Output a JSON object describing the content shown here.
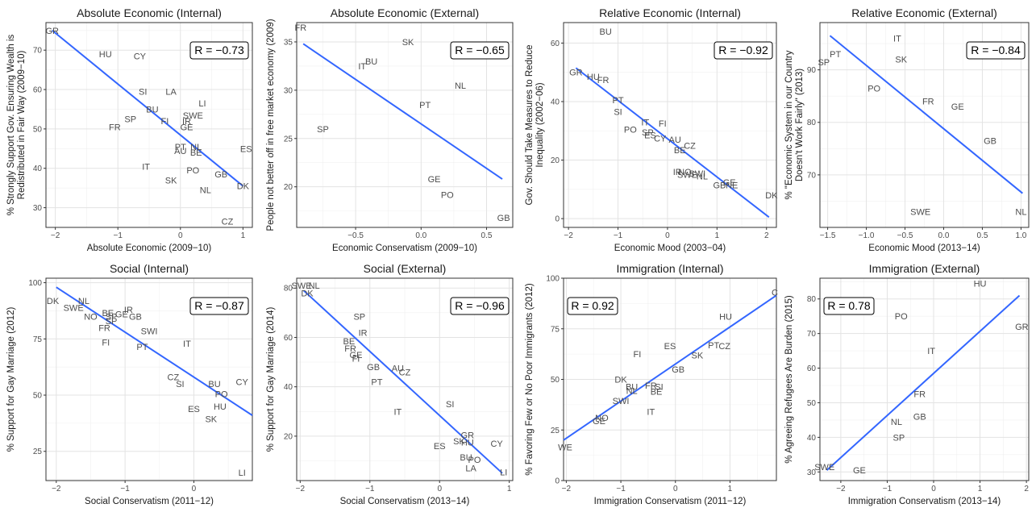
{
  "chart_data": [
    {
      "type": "scatter",
      "title": "Absolute Economic (Internal)",
      "xlabel": "Absolute Economic (2009−10)",
      "ylabel": [
        "% Strongly Support Gov. Ensuring Wealth is",
        "Redistributed in Fair Way (2009−10)"
      ],
      "annotation": "R = −0.73",
      "annotation_position": "top-right",
      "xlim": [
        -2.15,
        1.15
      ],
      "ylim": [
        25,
        77
      ],
      "xticks": [
        -2,
        -1,
        0,
        1
      ],
      "xtick_labels": [
        "−2",
        "−1",
        "0",
        "1"
      ],
      "yticks": [
        30,
        40,
        50,
        60,
        70
      ],
      "ytick_labels": [
        "30",
        "40",
        "50",
        "60",
        "70"
      ],
      "fit_line": {
        "x": [
          -2.05,
          1.0
        ],
        "y": [
          75,
          35.5
        ]
      },
      "points": [
        {
          "label": "GR",
          "x": -2.05,
          "y": 75
        },
        {
          "label": "HU",
          "x": -1.2,
          "y": 69
        },
        {
          "label": "CY",
          "x": -0.65,
          "y": 68.5
        },
        {
          "label": "SI",
          "x": -0.6,
          "y": 59.5
        },
        {
          "label": "LA",
          "x": -0.15,
          "y": 59.5
        },
        {
          "label": "LI",
          "x": 0.35,
          "y": 56.5
        },
        {
          "label": "BU",
          "x": -0.45,
          "y": 55
        },
        {
          "label": "SWE",
          "x": 0.2,
          "y": 53.5
        },
        {
          "label": "SP",
          "x": -0.8,
          "y": 52.5
        },
        {
          "label": "FI",
          "x": -0.25,
          "y": 52
        },
        {
          "label": "IR",
          "x": 0.1,
          "y": 52
        },
        {
          "label": "FR",
          "x": -1.05,
          "y": 50.5
        },
        {
          "label": "GE",
          "x": 0.1,
          "y": 50.5
        },
        {
          "label": "PT",
          "x": 0.0,
          "y": 45.5
        },
        {
          "label": "NL",
          "x": 0.25,
          "y": 45.5
        },
        {
          "label": "ES",
          "x": 1.05,
          "y": 45
        },
        {
          "label": "AU",
          "x": 0.0,
          "y": 44.5
        },
        {
          "label": "BE",
          "x": 0.25,
          "y": 44
        },
        {
          "label": "IT",
          "x": -0.55,
          "y": 40.5
        },
        {
          "label": "PO",
          "x": 0.2,
          "y": 39.5
        },
        {
          "label": "GB",
          "x": 0.65,
          "y": 38.5
        },
        {
          "label": "SK",
          "x": -0.15,
          "y": 37
        },
        {
          "label": "DK",
          "x": 1.0,
          "y": 35.5
        },
        {
          "label": "NL",
          "x": 0.4,
          "y": 34.5
        },
        {
          "label": "CZ",
          "x": 0.75,
          "y": 26.5
        }
      ]
    },
    {
      "type": "scatter",
      "title": "Absolute Economic (External)",
      "xlabel": "Economic Conservatism (2009−10)",
      "ylabel": [
        "People not better off in free market economy (2009)"
      ],
      "annotation": "R = −0.65",
      "annotation_position": "top-right",
      "xlim": [
        -0.95,
        0.7
      ],
      "ylim": [
        15.8,
        37
      ],
      "xticks": [
        -0.5,
        0.0,
        0.5
      ],
      "xtick_labels": [
        "−0.5",
        "0.0",
        "0.5"
      ],
      "yticks": [
        20,
        25,
        30,
        35
      ],
      "ytick_labels": [
        "20",
        "25",
        "30",
        "35"
      ],
      "fit_line": {
        "x": [
          -0.9,
          0.62
        ],
        "y": [
          34.8,
          20.8
        ]
      },
      "points": [
        {
          "label": "FR",
          "x": -0.92,
          "y": 36.5
        },
        {
          "label": "SK",
          "x": -0.1,
          "y": 35
        },
        {
          "label": "BU",
          "x": -0.38,
          "y": 33
        },
        {
          "label": "IT",
          "x": -0.45,
          "y": 32.5
        },
        {
          "label": "NL",
          "x": 0.3,
          "y": 30.5
        },
        {
          "label": "PT",
          "x": 0.03,
          "y": 28.5
        },
        {
          "label": "SP",
          "x": -0.75,
          "y": 26
        },
        {
          "label": "GE",
          "x": 0.1,
          "y": 20.8
        },
        {
          "label": "PO",
          "x": 0.2,
          "y": 19.2
        },
        {
          "label": "GB",
          "x": 0.63,
          "y": 16.8
        }
      ]
    },
    {
      "type": "scatter",
      "title": "Relative Economic (Internal)",
      "xlabel": "Economic Mood (2003−04)",
      "ylabel": [
        "Gov. Should Take Measures to Reduce",
        "Inequality (2002−06)"
      ],
      "annotation": "R = −0.92",
      "annotation_position": "top-right",
      "xlim": [
        -2.1,
        2.2
      ],
      "ylim": [
        -3,
        67
      ],
      "xticks": [
        -2,
        -1,
        0,
        1,
        2
      ],
      "xtick_labels": [
        "−2",
        "−1",
        "0",
        "1",
        "2"
      ],
      "yticks": [
        0,
        20,
        40,
        60
      ],
      "ytick_labels": [
        "0",
        "20",
        "40",
        "60"
      ],
      "fit_line": {
        "x": [
          -1.85,
          2.05
        ],
        "y": [
          51.5,
          0.5
        ]
      },
      "points": [
        {
          "label": "BU",
          "x": -1.25,
          "y": 64
        },
        {
          "label": "GR",
          "x": -1.85,
          "y": 50
        },
        {
          "label": "HU",
          "x": -1.5,
          "y": 48.5
        },
        {
          "label": "FR",
          "x": -1.3,
          "y": 47.5
        },
        {
          "label": "PT",
          "x": -1.0,
          "y": 40.5
        },
        {
          "label": "SI",
          "x": -1.0,
          "y": 36.5
        },
        {
          "label": "IT",
          "x": -0.45,
          "y": 33
        },
        {
          "label": "FI",
          "x": -0.1,
          "y": 32.5
        },
        {
          "label": "PO",
          "x": -0.75,
          "y": 30.5
        },
        {
          "label": "SP",
          "x": -0.4,
          "y": 29.5
        },
        {
          "label": "ES",
          "x": -0.35,
          "y": 28.5
        },
        {
          "label": "CY",
          "x": -0.15,
          "y": 27.5
        },
        {
          "label": "AU",
          "x": 0.15,
          "y": 27
        },
        {
          "label": "CZ",
          "x": 0.45,
          "y": 25
        },
        {
          "label": "BE",
          "x": 0.25,
          "y": 23.5
        },
        {
          "label": "IR",
          "x": 0.2,
          "y": 16
        },
        {
          "label": "NO",
          "x": 0.35,
          "y": 16
        },
        {
          "label": "SWI",
          "x": 0.6,
          "y": 15.5
        },
        {
          "label": "SWE",
          "x": 0.4,
          "y": 15
        },
        {
          "label": "NL",
          "x": 0.7,
          "y": 14.5
        },
        {
          "label": "GE",
          "x": 1.25,
          "y": 12.5
        },
        {
          "label": "GB",
          "x": 1.05,
          "y": 11.5
        },
        {
          "label": "NE",
          "x": 1.3,
          "y": 11.5
        },
        {
          "label": "DK",
          "x": 2.1,
          "y": 8
        }
      ]
    },
    {
      "type": "scatter",
      "title": "Relative Economic (External)",
      "xlabel": "Economic Mood (2013−14)",
      "ylabel": [
        "% \"Economic System in our Country",
        "Doesn't Work Fairly\" (2013)"
      ],
      "annotation": "R = −0.84",
      "annotation_position": "top-right",
      "xlim": [
        -1.6,
        1.1
      ],
      "ylim": [
        60,
        99
      ],
      "xticks": [
        -1.5,
        -1.0,
        -0.5,
        0.0,
        0.5,
        1.0
      ],
      "xtick_labels": [
        "−1.5",
        "−1.0",
        "−0.5",
        "0.0",
        "0.5",
        "1.0"
      ],
      "yticks": [
        70,
        80,
        90
      ],
      "ytick_labels": [
        "70",
        "80",
        "90"
      ],
      "fit_line": {
        "x": [
          -1.47,
          1.02
        ],
        "y": [
          96.5,
          66.5
        ]
      },
      "points": [
        {
          "label": "IT",
          "x": -0.6,
          "y": 96
        },
        {
          "label": "PT",
          "x": -1.4,
          "y": 93
        },
        {
          "label": "SK",
          "x": -0.55,
          "y": 92
        },
        {
          "label": "SP",
          "x": -1.55,
          "y": 91.5
        },
        {
          "label": "PO",
          "x": -0.9,
          "y": 86.5
        },
        {
          "label": "FR",
          "x": -0.2,
          "y": 84
        },
        {
          "label": "GE",
          "x": 0.18,
          "y": 83
        },
        {
          "label": "GB",
          "x": 0.6,
          "y": 76.5
        },
        {
          "label": "SWE",
          "x": -0.3,
          "y": 63
        },
        {
          "label": "NL",
          "x": 1.0,
          "y": 63
        }
      ]
    },
    {
      "type": "scatter",
      "title": "Social (Internal)",
      "xlabel": "Social Conservatism (2011−12)",
      "ylabel": [
        "% Support for Gay Marriage (2012)"
      ],
      "annotation": "R = −0.87",
      "annotation_position": "top-right",
      "xlim": [
        -2.15,
        0.85
      ],
      "ylim": [
        12,
        102
      ],
      "xticks": [
        -2,
        -1,
        0
      ],
      "xtick_labels": [
        "−2",
        "−1",
        "0"
      ],
      "yticks": [
        25,
        50,
        75,
        100
      ],
      "ytick_labels": [
        "25",
        "50",
        "75",
        "100"
      ],
      "fit_line": {
        "x": [
          -2.0,
          0.85
        ],
        "y": [
          98,
          41
        ]
      },
      "points": [
        {
          "label": "DK",
          "x": -2.05,
          "y": 92
        },
        {
          "label": "NL",
          "x": -1.6,
          "y": 92
        },
        {
          "label": "SWE",
          "x": -1.75,
          "y": 89
        },
        {
          "label": "IR",
          "x": -0.95,
          "y": 88
        },
        {
          "label": "BE",
          "x": -1.25,
          "y": 86.5
        },
        {
          "label": "SP",
          "x": -1.2,
          "y": 85
        },
        {
          "label": "GE",
          "x": -1.05,
          "y": 86
        },
        {
          "label": "GB",
          "x": -0.85,
          "y": 85
        },
        {
          "label": "NO",
          "x": -1.5,
          "y": 85
        },
        {
          "label": "SP",
          "x": -1.2,
          "y": 83
        },
        {
          "label": "FR",
          "x": -1.3,
          "y": 80
        },
        {
          "label": "SWI",
          "x": -0.65,
          "y": 78.5
        },
        {
          "label": "FI",
          "x": -1.28,
          "y": 73.5
        },
        {
          "label": "PT",
          "x": -0.75,
          "y": 71.5
        },
        {
          "label": "IT",
          "x": -0.1,
          "y": 73
        },
        {
          "label": "CZ",
          "x": -0.3,
          "y": 58
        },
        {
          "label": "CY",
          "x": 0.7,
          "y": 56
        },
        {
          "label": "SI",
          "x": -0.2,
          "y": 55
        },
        {
          "label": "BU",
          "x": 0.3,
          "y": 55
        },
        {
          "label": "PO",
          "x": 0.4,
          "y": 50.5
        },
        {
          "label": "ES",
          "x": 0.0,
          "y": 44
        },
        {
          "label": "HU",
          "x": 0.38,
          "y": 45
        },
        {
          "label": "SK",
          "x": 0.25,
          "y": 39.5
        },
        {
          "label": "LI",
          "x": 0.7,
          "y": 15.5
        }
      ]
    },
    {
      "type": "scatter",
      "title": "Social (External)",
      "xlabel": "Social Conservatism (2013−14)",
      "ylabel": [
        "% Support for Gay Marriage (2014)"
      ],
      "annotation": "R = −0.96",
      "annotation_position": "top-right",
      "xlim": [
        -2.05,
        1.05
      ],
      "ylim": [
        2,
        84
      ],
      "xticks": [
        -2,
        -1,
        0,
        1
      ],
      "xtick_labels": [
        "−2",
        "−1",
        "0",
        "1"
      ],
      "yticks": [
        20,
        40,
        60,
        80
      ],
      "ytick_labels": [
        "20",
        "40",
        "60",
        "80"
      ],
      "fit_line": {
        "x": [
          -1.95,
          0.9
        ],
        "y": [
          79,
          5
        ]
      },
      "points": [
        {
          "label": "SWE",
          "x": -1.98,
          "y": 81
        },
        {
          "label": "NL",
          "x": -1.8,
          "y": 81
        },
        {
          "label": "DK",
          "x": -1.9,
          "y": 78
        },
        {
          "label": "SP",
          "x": -1.15,
          "y": 68.5
        },
        {
          "label": "IR",
          "x": -1.1,
          "y": 62
        },
        {
          "label": "BE",
          "x": -1.3,
          "y": 58.5
        },
        {
          "label": "FR",
          "x": -1.28,
          "y": 55.5
        },
        {
          "label": "GE",
          "x": -1.2,
          "y": 53
        },
        {
          "label": "FI",
          "x": -1.2,
          "y": 51.5
        },
        {
          "label": "GB",
          "x": -0.95,
          "y": 48
        },
        {
          "label": "AU",
          "x": -0.6,
          "y": 47.5
        },
        {
          "label": "CZ",
          "x": -0.5,
          "y": 46
        },
        {
          "label": "PT",
          "x": -0.9,
          "y": 42
        },
        {
          "label": "SI",
          "x": 0.15,
          "y": 33
        },
        {
          "label": "IT",
          "x": -0.6,
          "y": 30
        },
        {
          "label": "GR",
          "x": 0.4,
          "y": 20.5
        },
        {
          "label": "SK",
          "x": 0.28,
          "y": 18
        },
        {
          "label": "HU",
          "x": 0.4,
          "y": 17.5
        },
        {
          "label": "ES",
          "x": 0.0,
          "y": 16
        },
        {
          "label": "CY",
          "x": 0.82,
          "y": 17
        },
        {
          "label": "BU",
          "x": 0.38,
          "y": 11.5
        },
        {
          "label": "PO",
          "x": 0.5,
          "y": 10.5
        },
        {
          "label": "LA",
          "x": 0.45,
          "y": 7
        },
        {
          "label": "LI",
          "x": 0.92,
          "y": 5.5
        }
      ]
    },
    {
      "type": "scatter",
      "title": "Immigration (Internal)",
      "xlabel": "Immigration Conservatism (2011−12)",
      "ylabel": [
        "% Favoring Few or No Poor Immigrants (2012)"
      ],
      "annotation": "R = 0.92",
      "annotation_position": "top-left",
      "xlim": [
        -2.05,
        1.85
      ],
      "ylim": [
        0,
        100
      ],
      "xticks": [
        -2,
        -1,
        0,
        1
      ],
      "xtick_labels": [
        "−2",
        "−1",
        "0",
        "1"
      ],
      "yticks": [
        0,
        25,
        50,
        75,
        100
      ],
      "ytick_labels": [
        "0",
        "25",
        "50",
        "75",
        "100"
      ],
      "fit_line": {
        "x": [
          -2.05,
          1.85
        ],
        "y": [
          20,
          91.5
        ]
      },
      "points": [
        {
          "label": "C",
          "x": 1.82,
          "y": 93
        },
        {
          "label": "HU",
          "x": 0.92,
          "y": 81
        },
        {
          "label": "ES",
          "x": -0.1,
          "y": 66.5
        },
        {
          "label": "PT",
          "x": 0.7,
          "y": 67
        },
        {
          "label": "CZ",
          "x": 0.9,
          "y": 66.5
        },
        {
          "label": "FI",
          "x": -0.7,
          "y": 62.5
        },
        {
          "label": "SK",
          "x": 0.4,
          "y": 62
        },
        {
          "label": "GB",
          "x": 0.05,
          "y": 55
        },
        {
          "label": "DK",
          "x": -1.0,
          "y": 50
        },
        {
          "label": "BU",
          "x": -0.8,
          "y": 46.5
        },
        {
          "label": "FR",
          "x": -0.45,
          "y": 47
        },
        {
          "label": "SI",
          "x": -0.3,
          "y": 46.5
        },
        {
          "label": "NL",
          "x": -0.8,
          "y": 44.5
        },
        {
          "label": "BE",
          "x": -0.35,
          "y": 44
        },
        {
          "label": "SWI",
          "x": -1.0,
          "y": 39.5
        },
        {
          "label": "IT",
          "x": -0.45,
          "y": 34
        },
        {
          "label": "NO",
          "x": -1.35,
          "y": 31
        },
        {
          "label": "GE",
          "x": -1.4,
          "y": 29.5
        },
        {
          "label": "WE",
          "x": -2.02,
          "y": 16.5
        }
      ]
    },
    {
      "type": "scatter",
      "title": "Immigration (External)",
      "xlabel": "Immigration Conservatism (2013−14)",
      "ylabel": [
        "% Agreeing Refugees Are Burden (2015)"
      ],
      "annotation": "R = 0.78",
      "annotation_position": "top-left",
      "xlim": [
        -2.45,
        2.05
      ],
      "ylim": [
        27.5,
        86
      ],
      "xticks": [
        -2,
        -1,
        0,
        1,
        2
      ],
      "xtick_labels": [
        "−2",
        "−1",
        "0",
        "1",
        "2"
      ],
      "yticks": [
        30,
        40,
        50,
        60,
        70,
        80
      ],
      "ytick_labels": [
        "30",
        "40",
        "50",
        "60",
        "70",
        "80"
      ],
      "fit_line": {
        "x": [
          -2.3,
          1.85
        ],
        "y": [
          30.5,
          81
        ]
      },
      "points": [
        {
          "label": "HU",
          "x": 1.0,
          "y": 84.5
        },
        {
          "label": "PO",
          "x": -0.7,
          "y": 75
        },
        {
          "label": "GR",
          "x": 1.9,
          "y": 72
        },
        {
          "label": "IT",
          "x": -0.05,
          "y": 65
        },
        {
          "label": "FR",
          "x": -0.3,
          "y": 52.5
        },
        {
          "label": "GB",
          "x": -0.3,
          "y": 46
        },
        {
          "label": "NL",
          "x": -0.8,
          "y": 44.5
        },
        {
          "label": "SP",
          "x": -0.75,
          "y": 40
        },
        {
          "label": "SWE",
          "x": -2.35,
          "y": 31.5
        },
        {
          "label": "GE",
          "x": -1.6,
          "y": 30.5
        }
      ]
    }
  ]
}
